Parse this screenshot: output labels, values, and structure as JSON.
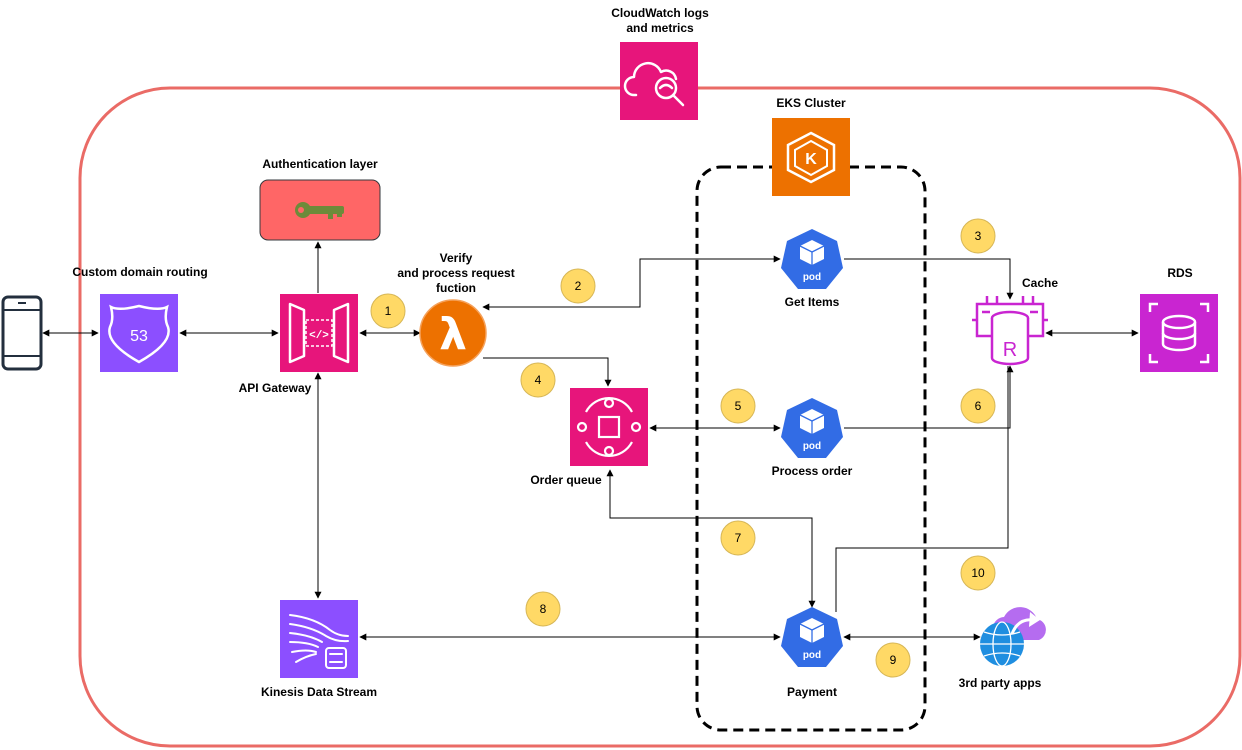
{
  "colors": {
    "boundary": "#ea6b66",
    "pink_service": "#e7157b",
    "purple_service": "#8c4fff",
    "magenta_service": "#c925d1",
    "lambda_orange": "#ed7100",
    "eks_orange": "#ed7100",
    "auth_box": "#ff6666",
    "pod_blue": "#326ce5",
    "step_fill": "#ffd966"
  },
  "labels": {
    "cloudwatch": [
      "CloudWatch logs",
      "and metrics"
    ],
    "eks": "EKS Cluster",
    "auth": "Authentication layer",
    "custom_domain": "Custom domain routing",
    "api_gateway": "API Gateway",
    "verify": [
      "Verify",
      "and process request",
      "fuction"
    ],
    "get_items": "Get Items",
    "cache": "Cache",
    "rds": "RDS",
    "order_queue": "Order queue",
    "process_order": "Process order",
    "kinesis": "Kinesis Data Stream",
    "payment": "Payment",
    "third_party": "3rd party apps"
  },
  "pod_text": "pod",
  "route53_text": "53",
  "eks_k": "K",
  "cache_r": "R",
  "steps": [
    "1",
    "2",
    "3",
    "4",
    "5",
    "6",
    "7",
    "8",
    "9",
    "10"
  ]
}
